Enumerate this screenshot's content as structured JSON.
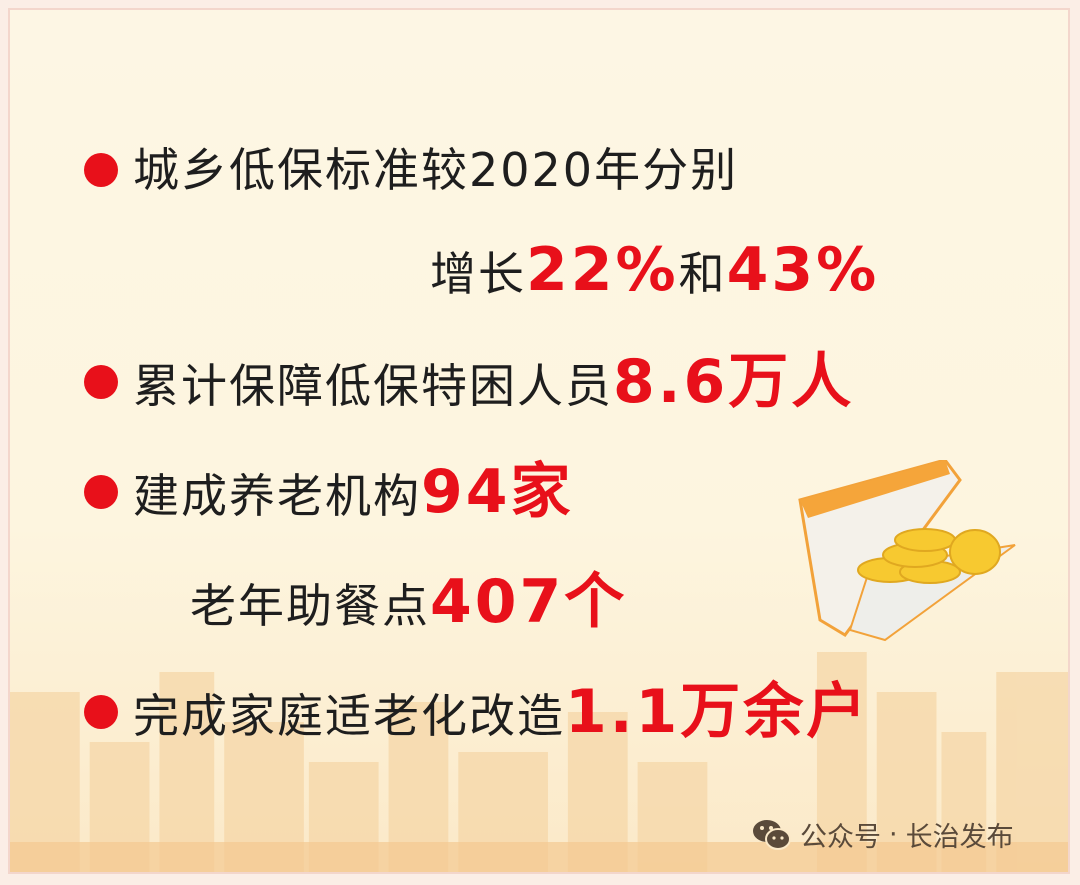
{
  "items": [
    {
      "text_a": "城乡低保标准较2020年分别"
    },
    {
      "text_a": "增长",
      "value_a": "22%",
      "text_b": "和",
      "value_b": "43%"
    },
    {
      "text_a": "累计保障低保特困人员",
      "value_a": "8.6万人"
    },
    {
      "text_a": "建成养老机构",
      "value_a": "94家"
    },
    {
      "text_a": "老年助餐点",
      "value_a": "407个"
    },
    {
      "text_a": "完成家庭适老化改造",
      "value_a": "1.1万余户"
    }
  ],
  "watermark": {
    "icon": "wechat-icon",
    "label": "公众号",
    "separator": "·",
    "account": "长治发布"
  },
  "colors": {
    "accent": "#e8101a",
    "text": "#1e1e1e",
    "background": "#fdf6e4"
  }
}
